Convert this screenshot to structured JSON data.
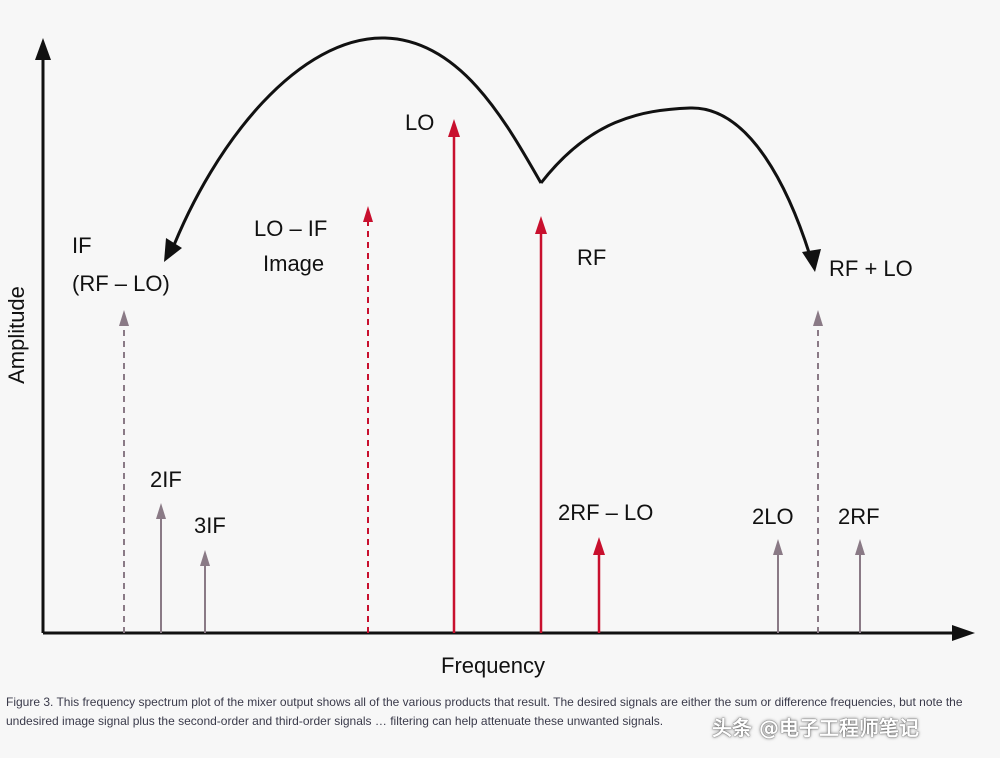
{
  "axes": {
    "y_label": "Amplitude",
    "x_label": "Frequency"
  },
  "signals": [
    {
      "id": "if",
      "label_lines": [
        "IF",
        "(RF – LO)"
      ],
      "style": "dashed",
      "color": "#8a7a86"
    },
    {
      "id": "2if",
      "label_lines": [
        "2IF"
      ],
      "style": "solid",
      "color": "#8a7a86"
    },
    {
      "id": "3if",
      "label_lines": [
        "3IF"
      ],
      "style": "solid",
      "color": "#8a7a86"
    },
    {
      "id": "image",
      "label_lines": [
        "LO – IF",
        "Image"
      ],
      "style": "dashed",
      "color": "#c8102e"
    },
    {
      "id": "lo",
      "label_lines": [
        "LO"
      ],
      "style": "solid",
      "color": "#c8102e"
    },
    {
      "id": "rf",
      "label_lines": [
        "RF"
      ],
      "style": "solid",
      "color": "#c8102e"
    },
    {
      "id": "2rf-lo",
      "label_lines": [
        "2RF – LO"
      ],
      "style": "solid",
      "color": "#c8102e"
    },
    {
      "id": "2lo",
      "label_lines": [
        "2LO"
      ],
      "style": "solid",
      "color": "#8a7a86"
    },
    {
      "id": "rf+lo",
      "label_lines": [
        "RF + LO"
      ],
      "style": "dashed",
      "color": "#8a7a86"
    },
    {
      "id": "2rf",
      "label_lines": [
        "2RF"
      ],
      "style": "solid",
      "color": "#8a7a86"
    }
  ],
  "caption": "Figure 3. This frequency spectrum plot of the mixer output shows all of the various products that result. The desired signals are either the sum or difference frequencies, but note the undesired image signal plus the second-order and third-order signals … filtering can help attenuate these unwanted signals.",
  "watermark": "头条 @电子工程师笔记"
}
